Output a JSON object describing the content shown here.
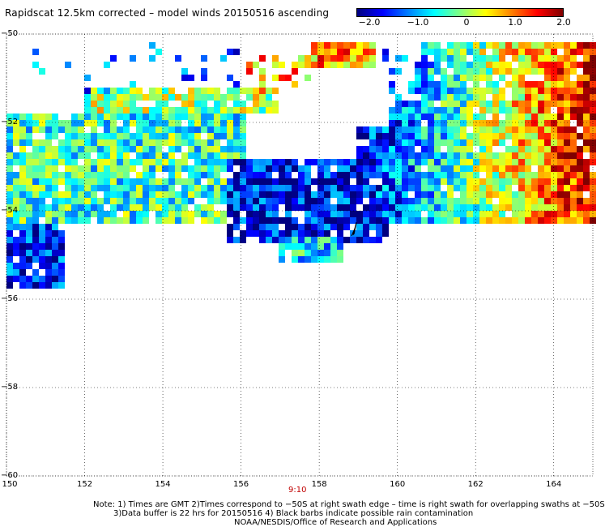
{
  "title": "Rapidscat 12.5km corrected – model winds 20150516 ascending",
  "colorbar": {
    "labels": [
      "−2.0",
      "−1.0",
      "0",
      "1.0",
      "2.0"
    ],
    "min": -2.0,
    "max": 2.0,
    "colors": [
      "#00007f",
      "#0000ff",
      "#0080ff",
      "#00ffff",
      "#80ff80",
      "#ffff00",
      "#ff8000",
      "#ff0000",
      "#7f0000"
    ]
  },
  "axes": {
    "lat_labels": [
      "−50",
      "−52",
      "−54",
      "−56",
      "−58",
      "−60"
    ],
    "lon_labels": [
      "150",
      "152",
      "154",
      "156",
      "158",
      "160",
      "162",
      "164"
    ],
    "lat_range": [
      -60,
      -50
    ],
    "lon_range": [
      150,
      165
    ],
    "grid": "dotted"
  },
  "time_label": "9:10",
  "notes": {
    "line1": "Note: 1) Times are GMT 2)Times correspond to −50S at right swath edge – time is right swath for overlapping swaths at −50S",
    "line2": "3)Data buffer is 22 hrs for 20150516 4) Black barbs indicate possible rain contamination",
    "line3": "NOAA/NESDIS/Office of Research and Applications"
  }
}
